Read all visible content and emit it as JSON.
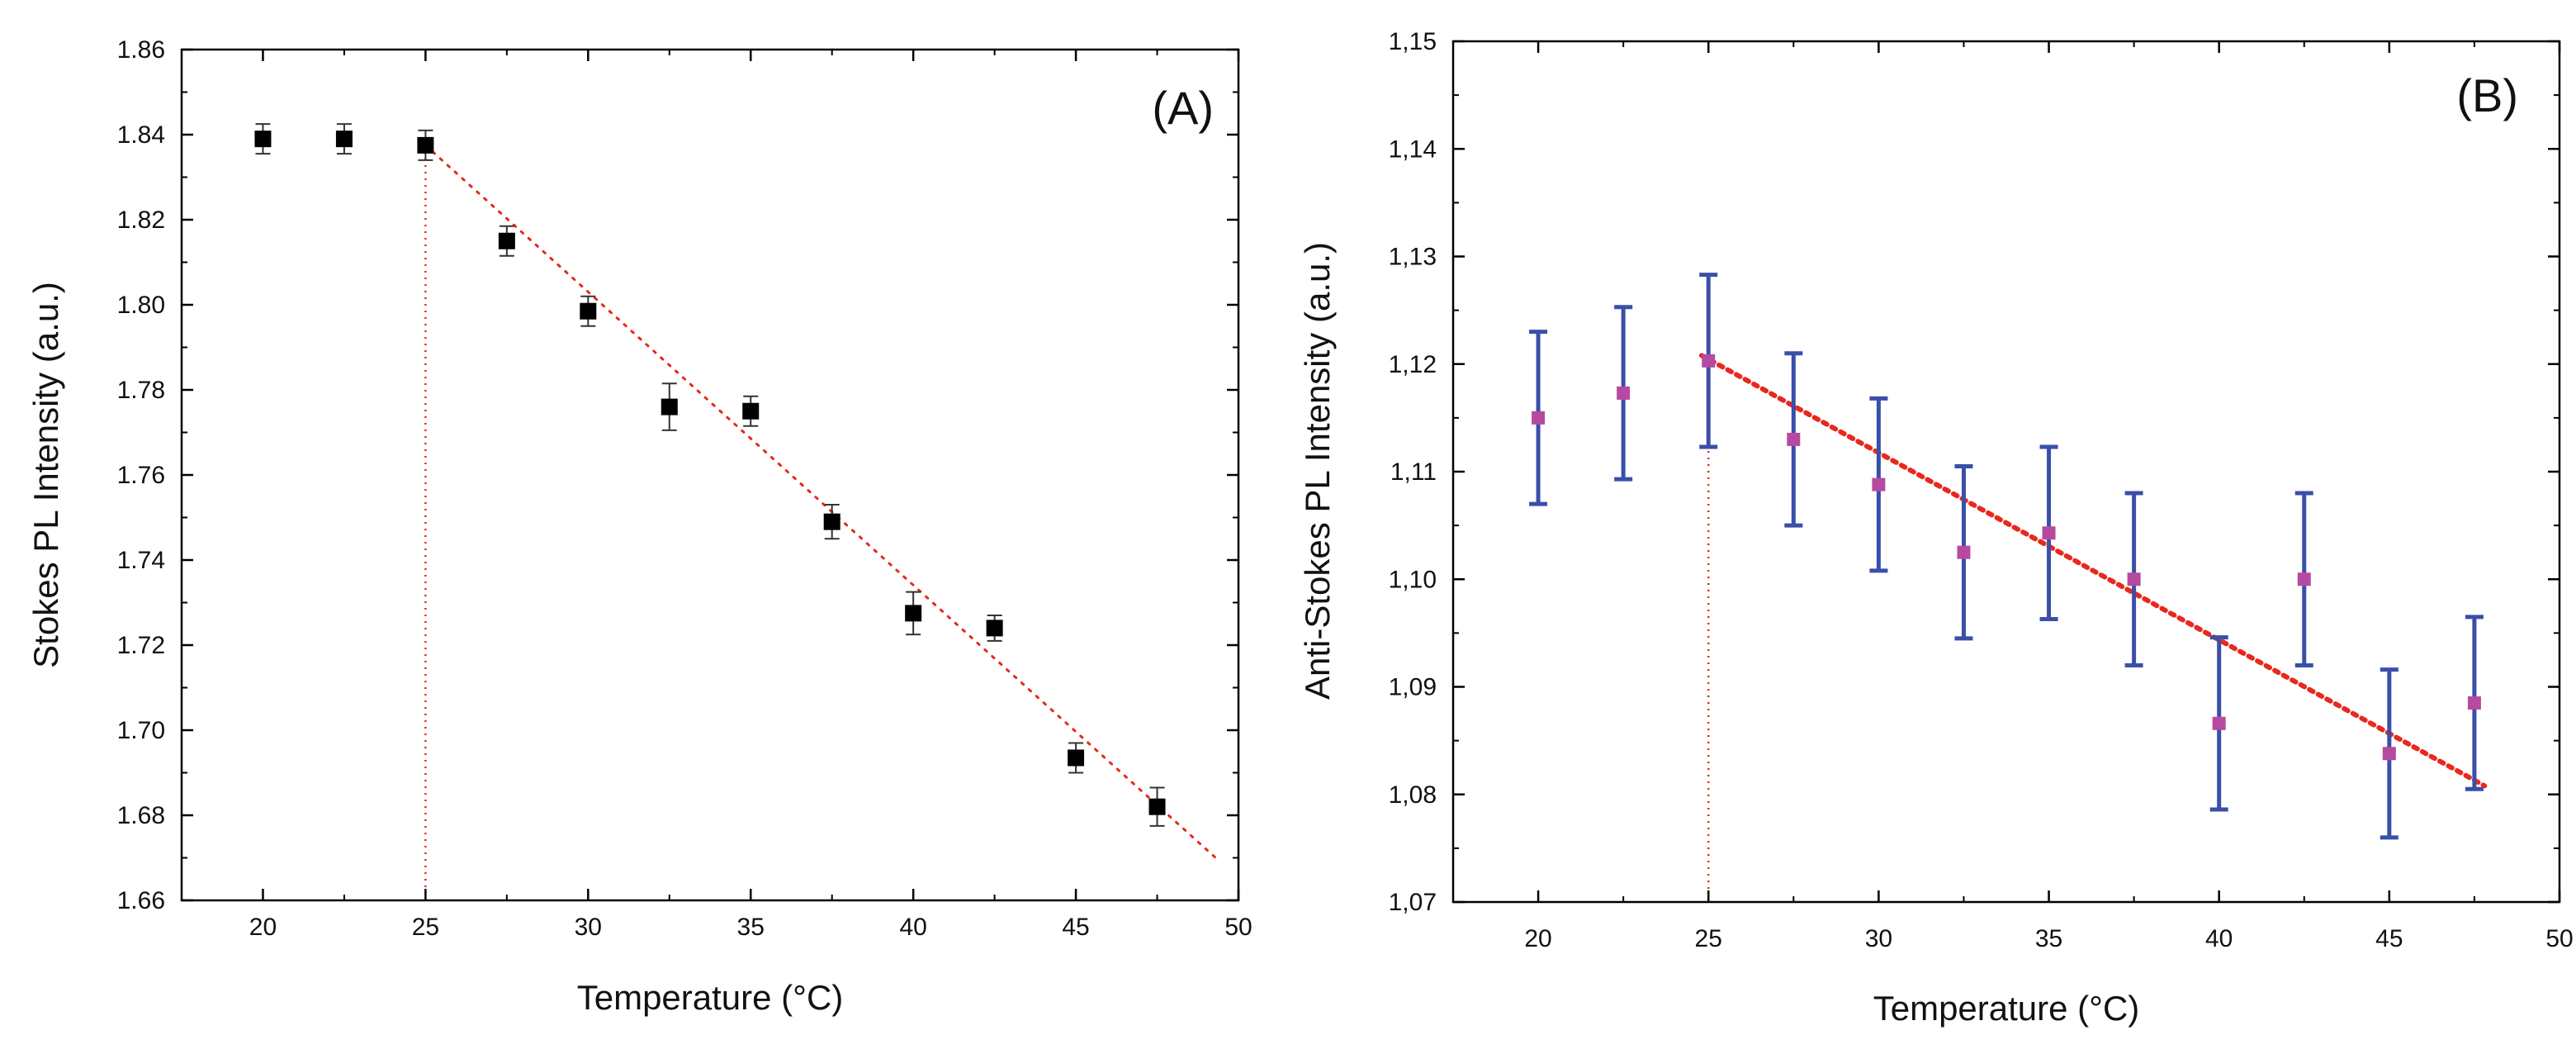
{
  "chart_data": [
    {
      "type": "scatter",
      "panel_label": "(A)",
      "xlabel": "Temperature (°C)",
      "ylabel": "Stokes PL Intensity (a.u.)",
      "xlim": [
        17.5,
        50
      ],
      "ylim": [
        1.66,
        1.86
      ],
      "xticks": [
        20,
        25,
        30,
        35,
        40,
        45,
        50
      ],
      "yticks": [
        1.66,
        1.68,
        1.7,
        1.72,
        1.74,
        1.76,
        1.78,
        1.8,
        1.82,
        1.84,
        1.86
      ],
      "ytick_labels": [
        "1.66",
        "1.68",
        "1.70",
        "1.72",
        "1.74",
        "1.76",
        "1.78",
        "1.80",
        "1.82",
        "1.84",
        "1.86"
      ],
      "marker_color": "#000000",
      "errorbar_color": "#333333",
      "fit_color": "#e8281e",
      "series": [
        {
          "name": "Stokes PL",
          "x": [
            20,
            22.5,
            25,
            27.5,
            30,
            32.5,
            35,
            37.5,
            40,
            42.5,
            45,
            47.5
          ],
          "y": [
            1.839,
            1.839,
            1.8375,
            1.815,
            1.7985,
            1.776,
            1.775,
            1.749,
            1.7275,
            1.724,
            1.6935,
            1.682
          ],
          "err": [
            0.0035,
            0.0035,
            0.0035,
            0.0035,
            0.0035,
            0.0055,
            0.0035,
            0.004,
            0.005,
            0.003,
            0.0035,
            0.0045
          ]
        }
      ],
      "fit_line": {
        "x": [
          25,
          49.3
        ],
        "y": [
          1.8375,
          1.67
        ]
      },
      "vline": {
        "x": 25,
        "y": [
          1.66,
          1.8375
        ]
      }
    },
    {
      "type": "scatter",
      "panel_label": "(B)",
      "xlabel": "Temperature (°C)",
      "ylabel": "Anti-Stokes PL Intensity (a.u.)",
      "xlim": [
        17.5,
        50
      ],
      "ylim": [
        1.07,
        1.15
      ],
      "xticks": [
        20,
        25,
        30,
        35,
        40,
        45,
        50
      ],
      "yticks": [
        1.07,
        1.08,
        1.09,
        1.1,
        1.11,
        1.12,
        1.13,
        1.14,
        1.15
      ],
      "ytick_labels": [
        "1,07",
        "1,08",
        "1,09",
        "1,10",
        "1,11",
        "1,12",
        "1,13",
        "1,14",
        "1,15"
      ],
      "marker_color": "#b64aa0",
      "errorbar_color": "#3a4fa8",
      "fit_color": "#e8281e",
      "series": [
        {
          "name": "Anti-Stokes PL",
          "x": [
            20,
            22.5,
            25,
            27.5,
            30,
            32.5,
            35,
            37.5,
            40,
            42.5,
            45,
            47.5
          ],
          "y": [
            1.115,
            1.1173,
            1.1203,
            1.113,
            1.1088,
            1.1025,
            1.1043,
            1.1,
            1.0866,
            1.1,
            1.0838,
            1.0885
          ],
          "err": [
            0.008,
            0.008,
            0.008,
            0.008,
            0.008,
            0.008,
            0.008,
            0.008,
            0.008,
            0.008,
            0.0078,
            0.008
          ]
        }
      ],
      "fit_line": {
        "x": [
          24.8,
          47.8
        ],
        "y": [
          1.1208,
          1.0808
        ]
      },
      "vline": {
        "x": 25,
        "y": [
          1.07,
          1.1203
        ]
      }
    }
  ]
}
